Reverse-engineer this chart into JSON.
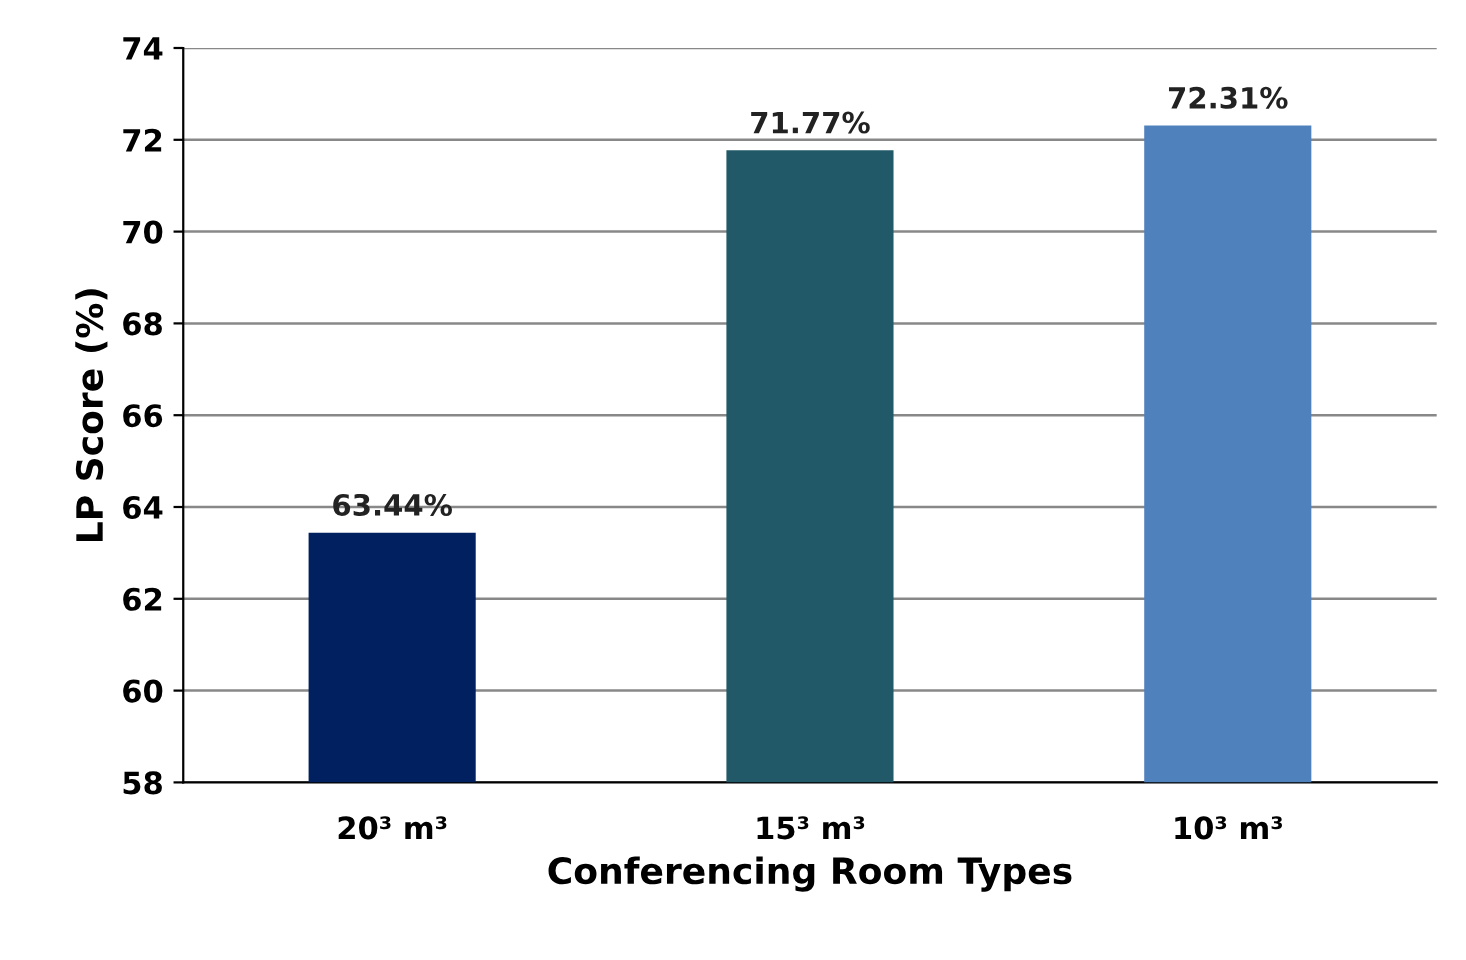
{
  "chart_data": {
    "type": "bar",
    "xlabel": "Conferencing Room Types",
    "ylabel": "LP Score (%)",
    "categories": [
      "20³ m³",
      "15³ m³",
      "10³ m³"
    ],
    "values": [
      63.44,
      71.77,
      72.31
    ],
    "colors": [
      "#002060",
      "#215968",
      "#4f81bd"
    ],
    "value_labels": [
      "63.44%",
      "71.77%",
      "72.31%"
    ],
    "ylim": [
      58,
      74
    ],
    "yticks": [
      58,
      60,
      62,
      64,
      66,
      68,
      70,
      72,
      74
    ],
    "grid": "y"
  }
}
